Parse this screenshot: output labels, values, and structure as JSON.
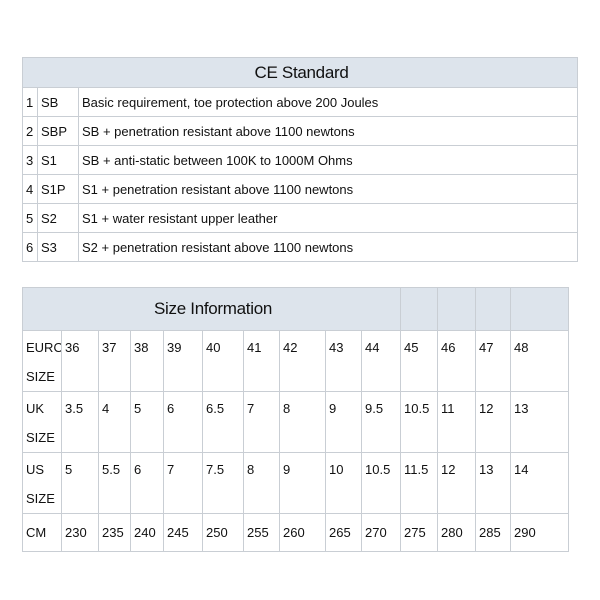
{
  "ce_standard": {
    "title": "CE Standard",
    "rows": [
      {
        "num": "1",
        "code": "SB",
        "description": "Basic requirement, toe protection above 200 Joules"
      },
      {
        "num": "2",
        "code": "SBP",
        "description": "SB + penetration resistant above 1100 newtons"
      },
      {
        "num": "3",
        "code": "S1",
        "description": "SB + anti-static between 100K to 1000M Ohms"
      },
      {
        "num": "4",
        "code": "S1P",
        "description": "S1 + penetration resistant above 1100 newtons"
      },
      {
        "num": "5",
        "code": "S2",
        "description": "S1 + water resistant upper leather"
      },
      {
        "num": "6",
        "code": "S3",
        "description": "S2 + penetration resistant above 1100 newtons"
      }
    ]
  },
  "size_information": {
    "title": "Size Information",
    "rows": [
      {
        "label_line1": "EURO",
        "label_line2": "SIZE",
        "values": [
          "36",
          "37",
          "38",
          "39",
          "40",
          "41",
          "42",
          "43",
          "44",
          "45",
          "46",
          "47",
          "48"
        ]
      },
      {
        "label_line1": "UK",
        "label_line2": "SIZE",
        "values": [
          "3.5",
          "4",
          "5",
          "6",
          "6.5",
          "7",
          "8",
          "9",
          "9.5",
          "10.5",
          "11",
          "12",
          "13"
        ]
      },
      {
        "label_line1": "US",
        "label_line2": "SIZE",
        "values": [
          "5",
          "5.5",
          "6",
          "7",
          "7.5",
          "8",
          "9",
          "10",
          "10.5",
          "11.5",
          "12",
          "13",
          "14"
        ]
      },
      {
        "label_line1": "CM",
        "label_line2": "",
        "values": [
          "230",
          "235",
          "240",
          "245",
          "250",
          "255",
          "260",
          "265",
          "270",
          "275",
          "280",
          "285",
          "290"
        ]
      }
    ]
  },
  "colors": {
    "header_bg": "#dde4ec",
    "border": "#c9ced4"
  }
}
